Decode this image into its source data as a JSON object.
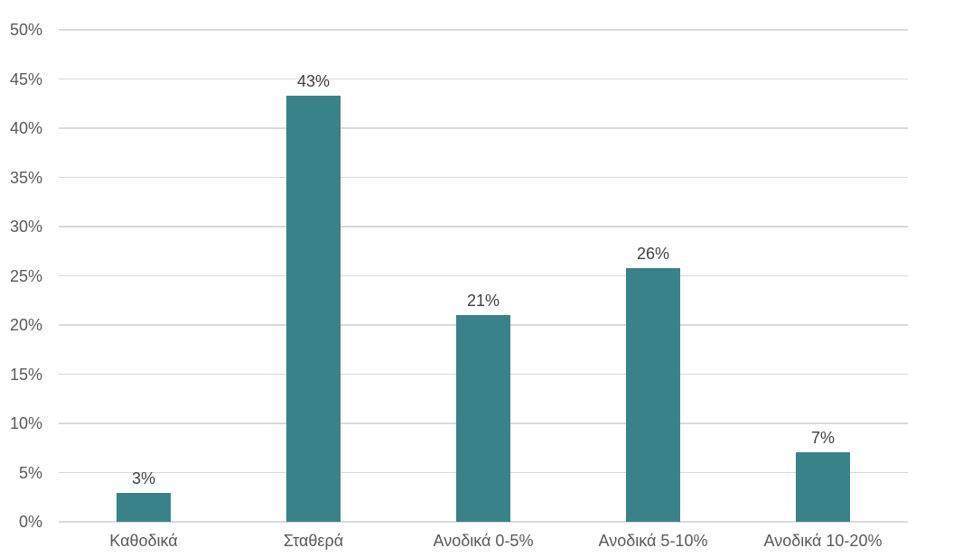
{
  "chart_data": {
    "type": "bar",
    "title": "",
    "xlabel": "",
    "ylabel": "",
    "categories": [
      "Καθοδικά",
      "Σταθερά",
      "Ανοδικά 0-5%",
      "Ανοδικά 5-10%",
      "Ανοδικά 10-20%"
    ],
    "values": [
      2.9,
      43.3,
      21.0,
      25.8,
      7.1
    ],
    "data_labels": [
      "3%",
      "43%",
      "21%",
      "26%",
      "7%"
    ],
    "ylim": [
      0,
      50
    ],
    "ytick_step": 5,
    "ytick_labels": [
      "0%",
      "5%",
      "10%",
      "15%",
      "20%",
      "25%",
      "30%",
      "35%",
      "40%",
      "45%",
      "50%"
    ],
    "grid": "horizontal",
    "legend": "none",
    "colors": {
      "bar": "#3A8289",
      "gridline": "#D9D9D9",
      "axis_line": "#D9D9D9",
      "axis_labels": "#595959",
      "data_labels": "#404040",
      "background": "#FFFFFF"
    }
  }
}
